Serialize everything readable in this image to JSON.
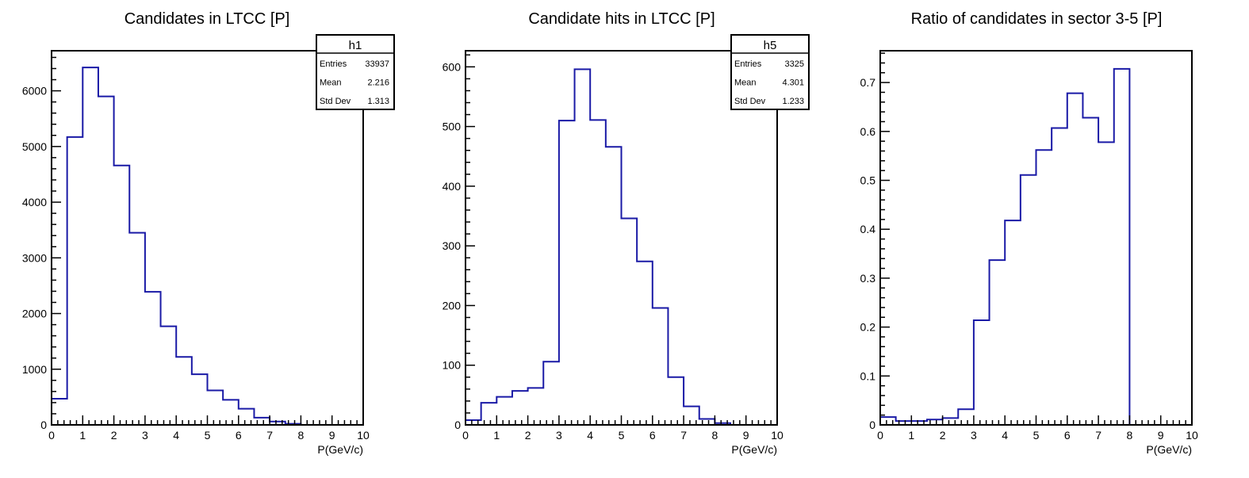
{
  "colors": {
    "line": "#1a1aa6",
    "frame": "#000000",
    "background": "#ffffff"
  },
  "chart_data": [
    {
      "type": "histogram",
      "title": "Candidates in LTCC [P]",
      "xlabel": "P(GeV/c)",
      "ylabel": "",
      "xlim": [
        0,
        10
      ],
      "ylim": [
        0,
        6720
      ],
      "x_ticks": [
        "0",
        "1",
        "2",
        "3",
        "4",
        "5",
        "6",
        "7",
        "8",
        "9",
        "10"
      ],
      "y_ticks": [
        {
          "value": 0,
          "label": "0"
        },
        {
          "value": 1000,
          "label": "1000"
        },
        {
          "value": 2000,
          "label": "2000"
        },
        {
          "value": 3000,
          "label": "3000"
        },
        {
          "value": 4000,
          "label": "4000"
        },
        {
          "value": 5000,
          "label": "5000"
        },
        {
          "value": 6000,
          "label": "6000"
        }
      ],
      "bin_width": 0.5,
      "bin_edges_start": 0,
      "values": [
        470,
        5170,
        6420,
        5900,
        4660,
        3450,
        2390,
        1770,
        1220,
        910,
        620,
        450,
        290,
        130,
        60,
        20,
        0,
        0,
        0,
        0
      ],
      "stats": {
        "name": "h1",
        "rows": [
          {
            "label": "Entries",
            "value": "33937"
          },
          {
            "label": "Mean",
            "value": "2.216"
          },
          {
            "label": "Std Dev",
            "value": "1.313"
          }
        ]
      }
    },
    {
      "type": "histogram",
      "title": "Candidate hits in LTCC [P]",
      "xlabel": "P(GeV/c)",
      "ylabel": "",
      "xlim": [
        0,
        10
      ],
      "ylim": [
        0,
        627
      ],
      "x_ticks": [
        "0",
        "1",
        "2",
        "3",
        "4",
        "5",
        "6",
        "7",
        "8",
        "9",
        "10"
      ],
      "y_ticks": [
        {
          "value": 0,
          "label": "0"
        },
        {
          "value": 100,
          "label": "100"
        },
        {
          "value": 200,
          "label": "200"
        },
        {
          "value": 300,
          "label": "300"
        },
        {
          "value": 400,
          "label": "400"
        },
        {
          "value": 500,
          "label": "500"
        },
        {
          "value": 600,
          "label": "600"
        }
      ],
      "bin_width": 0.5,
      "bin_edges_start": 0,
      "values": [
        8,
        37,
        47,
        57,
        62,
        106,
        510,
        596,
        511,
        466,
        346,
        274,
        196,
        80,
        31,
        10,
        3,
        0,
        0,
        0
      ],
      "stats": {
        "name": "h5",
        "rows": [
          {
            "label": "Entries",
            "value": "3325"
          },
          {
            "label": "Mean",
            "value": "4.301"
          },
          {
            "label": "Std Dev",
            "value": "1.233"
          }
        ]
      }
    },
    {
      "type": "histogram",
      "title": "Ratio of candidates in sector 3-5 [P]",
      "xlabel": "P(GeV/c)",
      "ylabel": "",
      "xlim": [
        0,
        10
      ],
      "ylim": [
        0,
        0.765
      ],
      "x_ticks": [
        "0",
        "1",
        "2",
        "3",
        "4",
        "5",
        "6",
        "7",
        "8",
        "9",
        "10"
      ],
      "y_ticks": [
        {
          "value": 0,
          "label": "0"
        },
        {
          "value": 0.1,
          "label": "0.1"
        },
        {
          "value": 0.2,
          "label": "0.2"
        },
        {
          "value": 0.3,
          "label": "0.3"
        },
        {
          "value": 0.4,
          "label": "0.4"
        },
        {
          "value": 0.5,
          "label": "0.5"
        },
        {
          "value": 0.6,
          "label": "0.6"
        },
        {
          "value": 0.7,
          "label": "0.7"
        }
      ],
      "bin_width": 0.5,
      "bin_edges_start": 0,
      "values": [
        0.016,
        0.008,
        0.008,
        0.011,
        0.014,
        0.032,
        0.214,
        0.337,
        0.418,
        0.511,
        0.562,
        0.607,
        0.678,
        0.628,
        0.578,
        0.728,
        0,
        0,
        0,
        0
      ],
      "stats": null
    }
  ]
}
